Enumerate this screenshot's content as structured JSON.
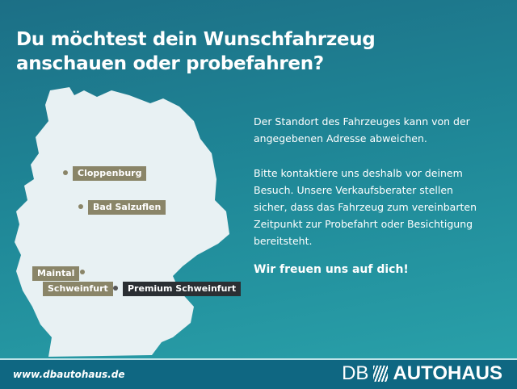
{
  "headline": [
    "Du möchtest dein Wunschfahrzeug",
    "anschauen oder probefahren?"
  ],
  "info": {
    "p1": [
      "Der Standort des Fahrzeuges kann von der",
      "angegebenen Adresse abweichen."
    ],
    "p2": [
      "Bitte kontaktiere uns deshalb vor deinem",
      "Besuch. Unsere Verkaufsberater stellen",
      "sicher, dass das Fahrzeug zum vereinbarten",
      "Zeitpunkt zur Probefahrt oder Besichtigung",
      "bereitsteht."
    ],
    "closing": "Wir freuen uns auf dich!"
  },
  "locations": [
    "Cloppenburg",
    "Bad Salzuflen",
    "Maintal",
    "Schweinfurt",
    "Premium Schweinfurt"
  ],
  "footer": {
    "url": "www.dbautohaus.de",
    "logo_db": "DB",
    "logo_autohaus": "AUTOHAUS"
  },
  "colors": {
    "map": "#e8f1f3",
    "pin": "#8a8568",
    "pin_dark": "#2b2f33",
    "footer": "#0f6782"
  }
}
